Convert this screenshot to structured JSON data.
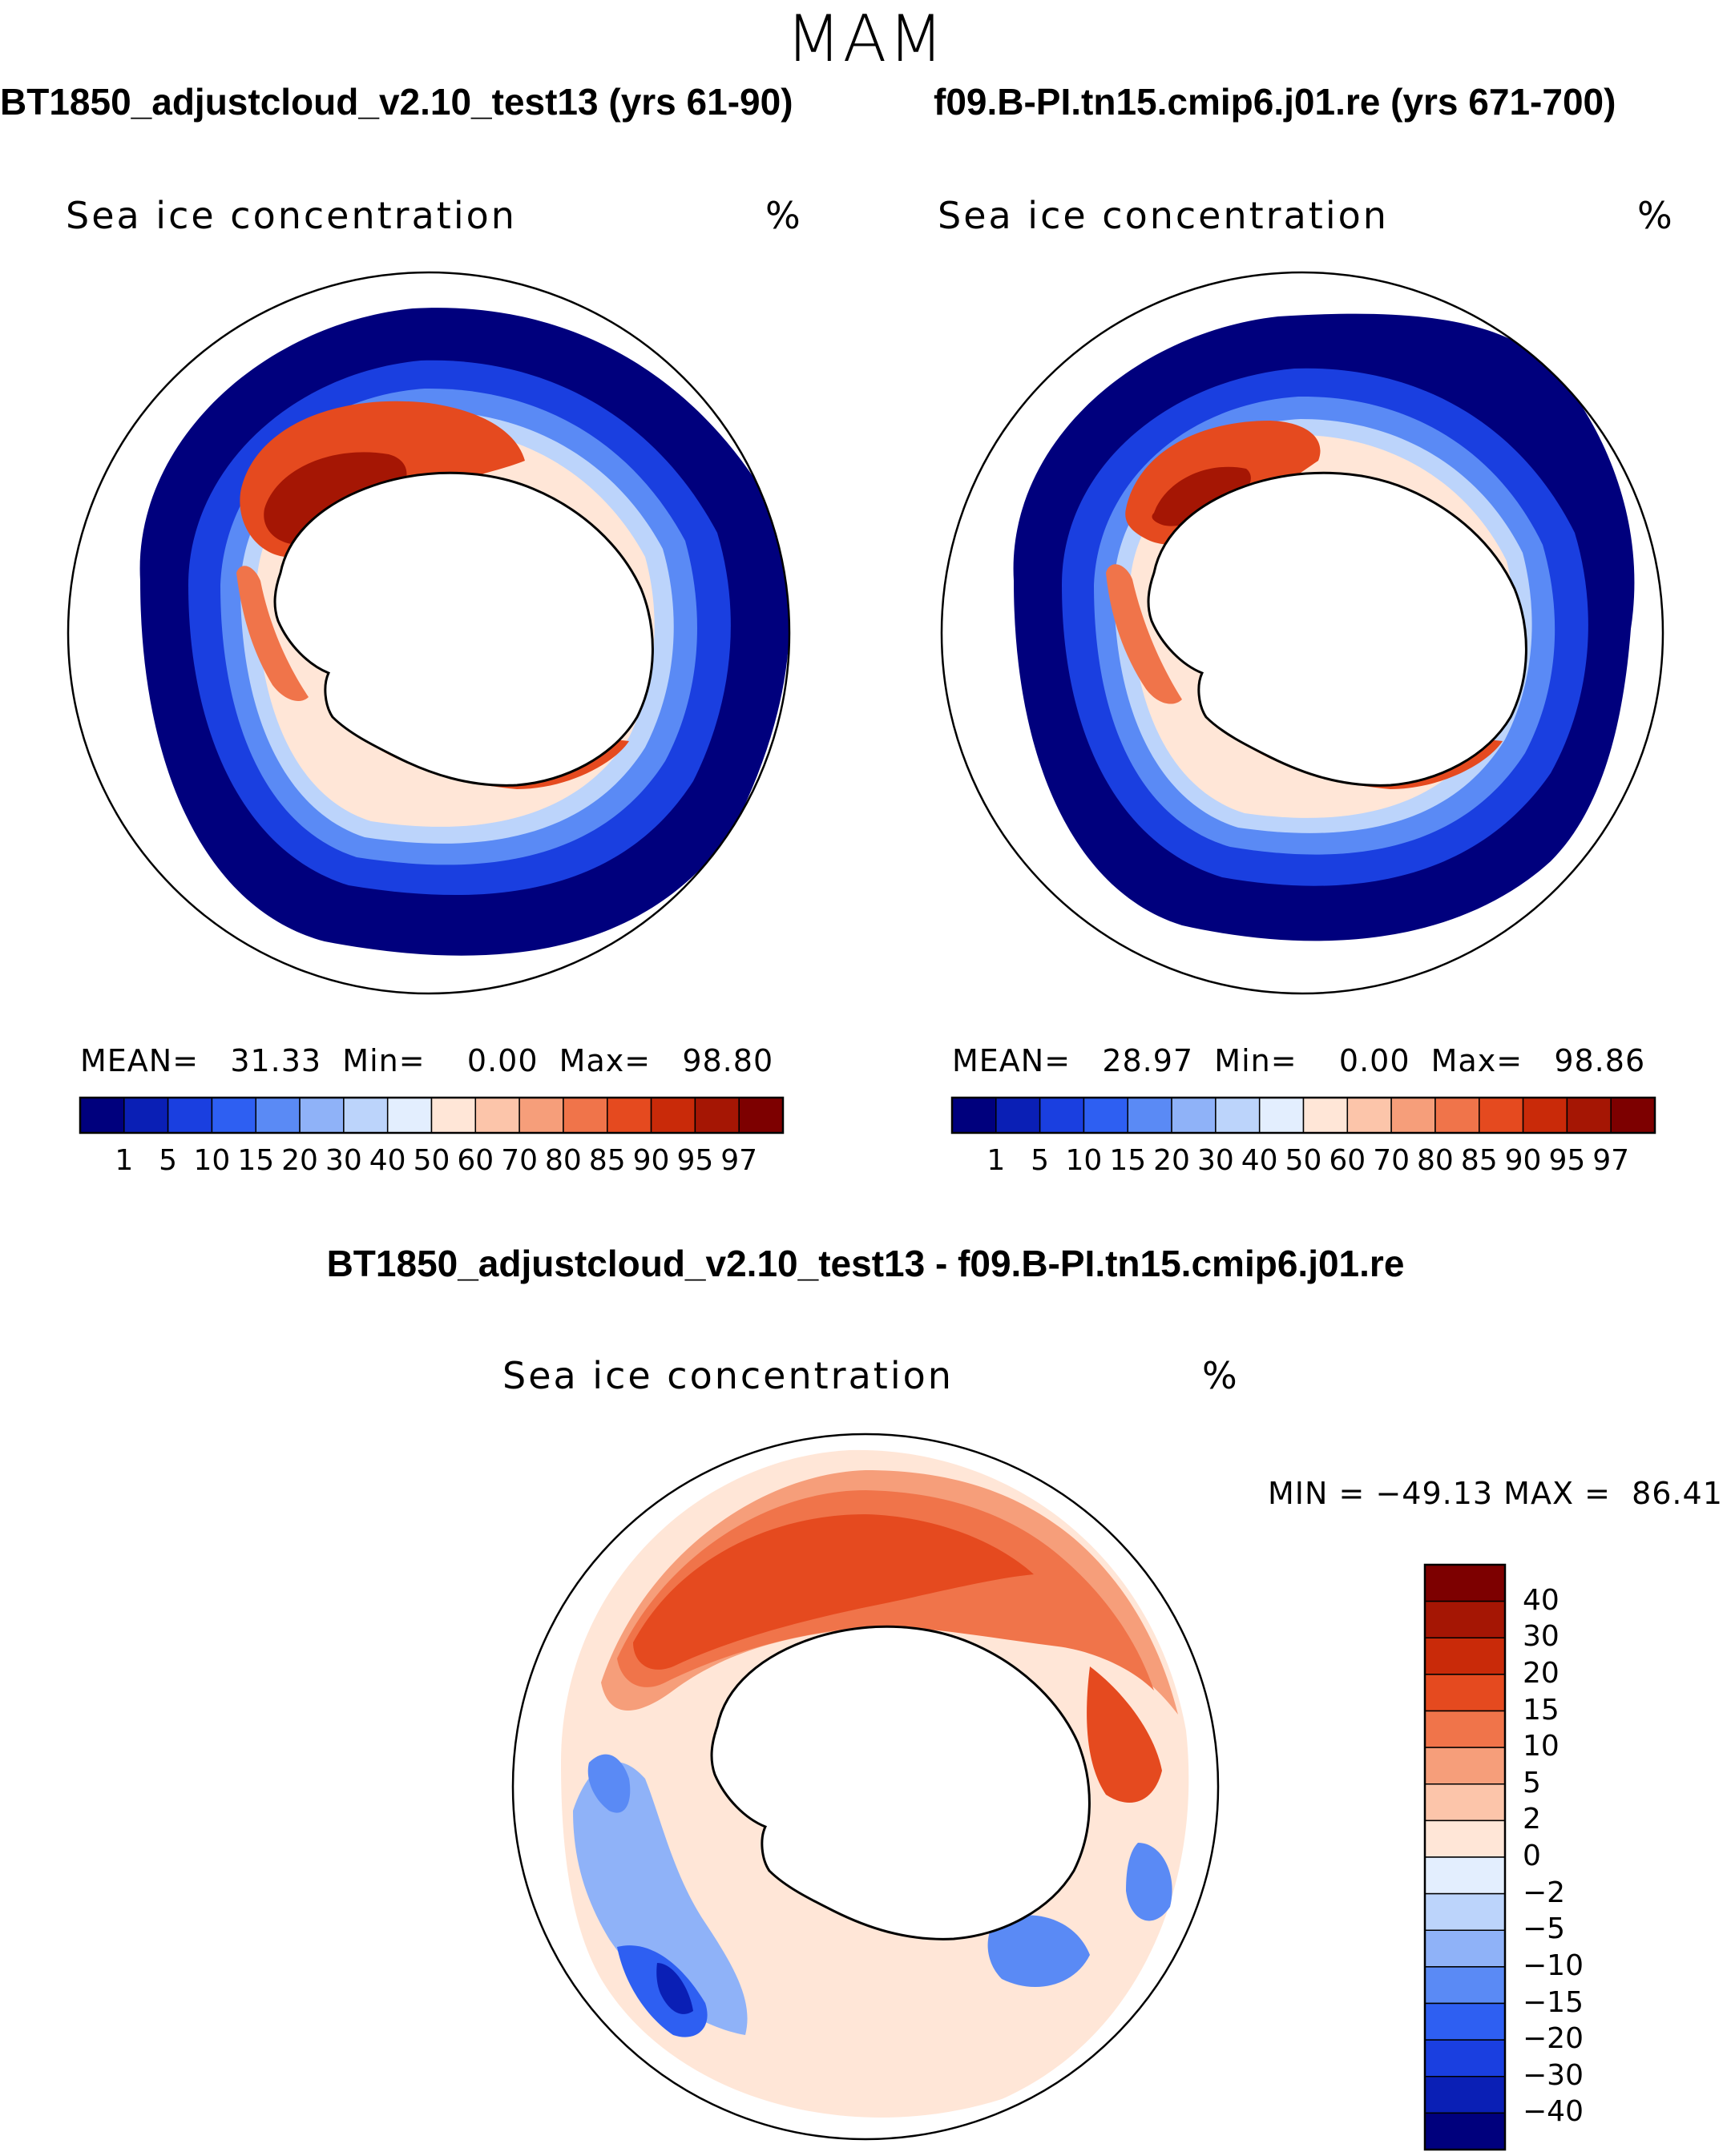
{
  "page": {
    "season": "MAM"
  },
  "panels": [
    {
      "case_title": "BT1850_adjustcloud_v2.10_test13 (yrs 61-90)",
      "variable": "Sea ice concentration",
      "unit": "%",
      "mean_label": "MEAN=",
      "mean": "31.33",
      "min_label": "Min=",
      "min": "0.00",
      "max_label": "Max=",
      "max": "98.80"
    },
    {
      "case_title": "f09.B-PI.tn15.cmip6.j01.re (yrs 671-700)",
      "variable": "Sea ice concentration",
      "unit": "%",
      "mean_label": "MEAN=",
      "mean": "28.97",
      "min_label": "Min=",
      "min": "0.00",
      "max_label": "Max=",
      "max": "98.86"
    }
  ],
  "diff": {
    "title": "BT1850_adjustcloud_v2.10_test13 - f09.B-PI.tn15.cmip6.j01.re",
    "variable": "Sea ice concentration",
    "unit": "%",
    "min_label": "MIN =",
    "min": "−49.13",
    "max_label": "MAX =",
    "max": "86.41"
  },
  "chart_data": [
    {
      "type": "heatmap",
      "title": "BT1850_adjustcloud_v2.10_test13 (yrs 61-90)",
      "subtitle": "Sea ice concentration (%)",
      "projection": "south polar stereographic",
      "colorbar": {
        "orientation": "horizontal",
        "levels": [
          "1",
          "5",
          "10",
          "15",
          "20",
          "30",
          "40",
          "50",
          "60",
          "70",
          "80",
          "85",
          "90",
          "95",
          "97"
        ],
        "colors": [
          "#00007d",
          "#0a1fb5",
          "#1a3fe0",
          "#2e5ff2",
          "#5a8af5",
          "#8fb2f8",
          "#bcd4fb",
          "#e3eefe",
          "#ffe6d7",
          "#fcc5aa",
          "#f69e7a",
          "#f0744a",
          "#e54a1f",
          "#c92a09",
          "#a51604",
          "#7d0000"
        ]
      },
      "stats": {
        "mean": 31.33,
        "min": 0.0,
        "max": 98.8
      }
    },
    {
      "type": "heatmap",
      "title": "f09.B-PI.tn15.cmip6.j01.re (yrs 671-700)",
      "subtitle": "Sea ice concentration (%)",
      "projection": "south polar stereographic",
      "colorbar": {
        "orientation": "horizontal",
        "levels": [
          "1",
          "5",
          "10",
          "15",
          "20",
          "30",
          "40",
          "50",
          "60",
          "70",
          "80",
          "85",
          "90",
          "95",
          "97"
        ],
        "colors": [
          "#00007d",
          "#0a1fb5",
          "#1a3fe0",
          "#2e5ff2",
          "#5a8af5",
          "#8fb2f8",
          "#bcd4fb",
          "#e3eefe",
          "#ffe6d7",
          "#fcc5aa",
          "#f69e7a",
          "#f0744a",
          "#e54a1f",
          "#c92a09",
          "#a51604",
          "#7d0000"
        ]
      },
      "stats": {
        "mean": 28.97,
        "min": 0.0,
        "max": 98.86
      }
    },
    {
      "type": "heatmap",
      "title": "BT1850_adjustcloud_v2.10_test13 - f09.B-PI.tn15.cmip6.j01.re",
      "subtitle": "Sea ice concentration (%)",
      "projection": "south polar stereographic",
      "colorbar": {
        "orientation": "vertical",
        "levels": [
          "40",
          "30",
          "20",
          "15",
          "10",
          "5",
          "2",
          "0",
          "−2",
          "−5",
          "−10",
          "−15",
          "−20",
          "−30",
          "−40"
        ],
        "colors": [
          "#7d0000",
          "#a51604",
          "#c92a09",
          "#e54a1f",
          "#f0744a",
          "#f69e7a",
          "#fcc5aa",
          "#ffe6d7",
          "#e3eefe",
          "#bcd4fb",
          "#8fb2f8",
          "#5a8af5",
          "#2e5ff2",
          "#1a3fe0",
          "#0a1fb5",
          "#00007d"
        ]
      },
      "stats": {
        "min": -49.13,
        "max": 86.41
      }
    }
  ]
}
